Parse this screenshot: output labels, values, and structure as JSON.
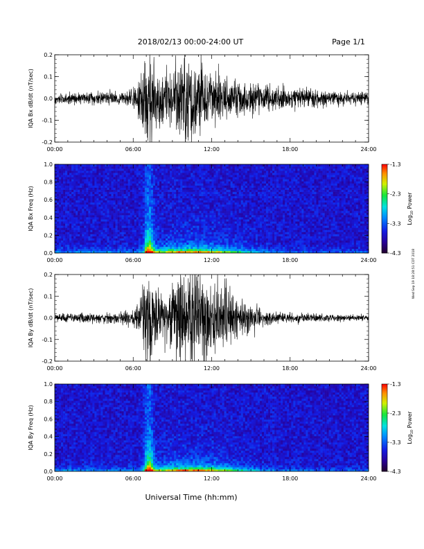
{
  "header": {
    "title": "2018/02/13  00:00-24:00 UT",
    "page": "Page 1/1"
  },
  "footer": {
    "xlabel": "Universal Time (hh:mm)",
    "stamp": "Wed Sep 19 18:28:51 CDT 2018"
  },
  "colorbar": {
    "label_main": "Log",
    "label_sub": "10",
    "label_tail": " Power",
    "ticks": [
      "-1.3",
      "-2.3",
      "-3.3",
      "-4.3"
    ],
    "range": [
      -4.3,
      -1.3
    ]
  },
  "chart_data": [
    {
      "type": "line",
      "title": "",
      "xlabel": "",
      "ylabel": "IQA Bx dB/dt (nT/sec)",
      "xlim": [
        0,
        24
      ],
      "ylim": [
        -0.2,
        0.2
      ],
      "xticks": [
        "00:00",
        "06:00",
        "12:00",
        "18:00",
        "24:00"
      ],
      "yticks": [
        "-0.2",
        "-0.1",
        "0.0",
        "0.1",
        "0.2"
      ],
      "series": [
        {
          "x_hours": [
            0,
            2,
            4,
            5.5,
            6.5,
            7.0,
            7.3,
            7.6,
            8.5,
            9.5,
            10.0,
            10.5,
            11.0,
            12.0,
            13.0,
            14.0,
            15.0,
            16.0,
            17.0,
            18.0,
            20.0,
            22.0,
            24.0
          ],
          "amplitude": [
            0.02,
            0.025,
            0.025,
            0.03,
            0.08,
            0.2,
            0.2,
            0.15,
            0.1,
            0.15,
            0.2,
            0.2,
            0.15,
            0.1,
            0.09,
            0.08,
            0.07,
            0.06,
            0.05,
            0.04,
            0.035,
            0.03,
            0.025
          ]
        }
      ]
    },
    {
      "type": "heatmap",
      "title": "",
      "xlabel": "",
      "ylabel": "IQA Bx Freq (Hz)",
      "xlim": [
        0,
        24
      ],
      "ylim": [
        0.0,
        1.0
      ],
      "xticks": [
        "00:00",
        "06:00",
        "12:00",
        "18:00",
        "24:00"
      ],
      "yticks": [
        "0.0",
        "0.2",
        "0.4",
        "0.6",
        "0.8",
        "1.0"
      ],
      "zlim": [
        -4.3,
        -1.3
      ]
    },
    {
      "type": "line",
      "title": "",
      "xlabel": "",
      "ylabel": "IQA By dB/dt (nT/sec)",
      "xlim": [
        0,
        24
      ],
      "ylim": [
        -0.2,
        0.2
      ],
      "xticks": [
        "00:00",
        "06:00",
        "12:00",
        "18:00",
        "24:00"
      ],
      "yticks": [
        "-0.2",
        "-0.1",
        "0.0",
        "0.1",
        "0.2"
      ],
      "series": [
        {
          "x_hours": [
            0,
            2,
            4,
            5.5,
            6.5,
            7.0,
            7.3,
            7.6,
            8.5,
            9.5,
            10.0,
            11.0,
            12.0,
            13.0,
            14.0,
            15.0,
            15.5,
            16.0,
            17.0,
            18.0,
            20.0,
            22.0,
            24.0
          ],
          "amplitude": [
            0.015,
            0.02,
            0.02,
            0.03,
            0.06,
            0.2,
            0.2,
            0.13,
            0.1,
            0.2,
            0.2,
            0.2,
            0.17,
            0.14,
            0.1,
            0.07,
            0.05,
            0.03,
            0.025,
            0.02,
            0.018,
            0.015,
            0.012
          ]
        }
      ]
    },
    {
      "type": "heatmap",
      "title": "",
      "xlabel": "",
      "ylabel": "IQA By Freq (Hz)",
      "xlim": [
        0,
        24
      ],
      "ylim": [
        0.0,
        1.0
      ],
      "xticks": [
        "00:00",
        "06:00",
        "12:00",
        "18:00",
        "24:00"
      ],
      "yticks": [
        "0.0",
        "0.2",
        "0.4",
        "0.6",
        "0.8",
        "1.0"
      ],
      "zlim": [
        -4.3,
        -1.3
      ]
    }
  ]
}
